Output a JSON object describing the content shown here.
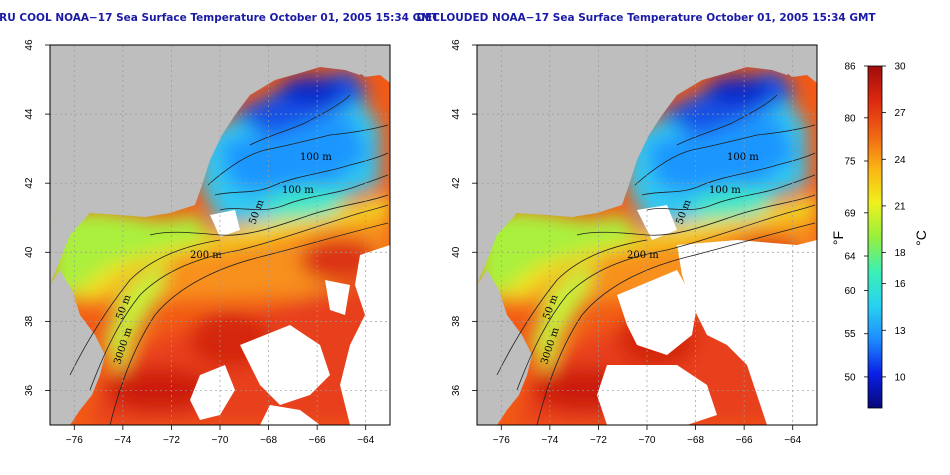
{
  "panels": [
    {
      "id": "left",
      "title": "RU COOL NOAA−17 Sea Surface Temperature October 01, 2005 15:34 GMT",
      "cloud_masked": false
    },
    {
      "id": "right",
      "title": "DECLOUDED NOAA−17 Sea Surface Temperature October 01, 2005 15:34 GMT",
      "cloud_masked": true
    }
  ],
  "axes": {
    "lon_range": [
      -77,
      -63
    ],
    "lat_range": [
      35,
      46
    ],
    "lon_ticks": [
      "−76",
      "−74",
      "−72",
      "−70",
      "−68",
      "−66",
      "−64"
    ],
    "lon_values": [
      -76,
      -74,
      -72,
      -70,
      -68,
      -66,
      -64
    ],
    "lat_ticks": [
      "36",
      "38",
      "40",
      "42",
      "44",
      "46"
    ],
    "lat_values": [
      36,
      38,
      40,
      42,
      44,
      46
    ],
    "grid": "dotted"
  },
  "contour_labels": [
    {
      "text": "100 m"
    },
    {
      "text": "100 m"
    },
    {
      "text": "50 m"
    },
    {
      "text": "200 m"
    },
    {
      "text": "50 m"
    },
    {
      "text": "3000 m"
    }
  ],
  "colorbar": {
    "celsius_label": "°C",
    "fahrenheit_label": "°F",
    "celsius_ticks": [
      "30",
      "27",
      "24",
      "21",
      "18",
      "16",
      "13",
      "10"
    ],
    "celsius_values": [
      30,
      27,
      24,
      21,
      18,
      16,
      13,
      10
    ],
    "fahrenheit_ticks": [
      "86",
      "80",
      "75",
      "69",
      "64",
      "60",
      "55",
      "50"
    ],
    "fahrenheit_values": [
      86,
      80,
      75,
      69,
      64,
      60,
      55,
      50
    ],
    "range_c": [
      8,
      30
    ],
    "colors": [
      "#08087a",
      "#0a1ee6",
      "#1e8cff",
      "#28d2f0",
      "#3cf0b4",
      "#96f03c",
      "#f0f01e",
      "#fab414",
      "#f06414",
      "#dc2810",
      "#a00c0c"
    ]
  },
  "colors": {
    "land": "#bebebe",
    "cloud": "#ffffff",
    "title": "#1a1aa6"
  }
}
